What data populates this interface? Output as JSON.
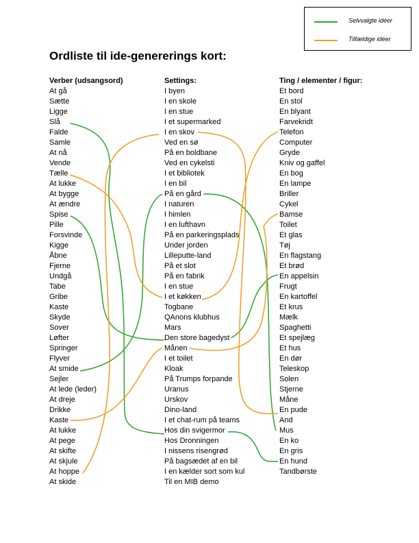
{
  "legend": {
    "items": [
      {
        "label": "Selvvalgte idéer",
        "color": "#2aa52a"
      },
      {
        "label": "Tilfældige idéer",
        "color": "#f39a1e"
      }
    ]
  },
  "title": "Ordliste til ide-genererings kort:",
  "columns": [
    {
      "header": "Verber (udsangsord)",
      "items": [
        "At gå",
        "Sætte",
        "Ligge",
        "Slå",
        "Falde",
        "Samle",
        "At nå",
        "Vende",
        "Tælle",
        "At lukke",
        "At bygge",
        "At ændre",
        "Spise",
        "Pille",
        "Forsvinde",
        "Kigge",
        "Åbne",
        "Fjerne",
        "Undgå",
        "Tabe",
        "Gribe",
        "Kaste",
        "Skyde",
        "Sover",
        "Løfter",
        "Springer",
        "Flyver",
        "At smide",
        "Sejler",
        "At lede (leder)",
        "At dreje",
        "Drikke",
        "Kaste",
        "At lukke",
        "At pege",
        "At skifte",
        "At skjule",
        "At hoppe",
        "At skide"
      ]
    },
    {
      "header": "Settings:",
      "items": [
        "I byen",
        "I en skole",
        "I en stue",
        "I et supermarked",
        "I en skov",
        "Ved en sø",
        "På en boldbane",
        "Ved en cykelsti",
        "I et bibliotek",
        "I en bil",
        "På en gård",
        "I naturen",
        "I himlen",
        "I en lufthavn",
        "På en parkeringsplads",
        "Under jorden",
        "Lilleputte-land",
        "På et slot",
        "På en fabrik",
        "I en stue",
        "I et køkken",
        "Togbane",
        "QAnons klubhus",
        "Mars",
        "Den store bagedyst",
        "Månen",
        "I et toilet",
        "Kloak",
        "På Trumps forpande",
        "Uranus",
        "Urskov",
        "Dino-land",
        "I et chat-rum på teams",
        "Hos din svigermor",
        "Hos Dronningen",
        "I nissens risengrød",
        "På bagsædet af en bil",
        "I en kælder sort som kul",
        "Til en MIB demo"
      ]
    },
    {
      "header": "Ting / elementer / figur:",
      "items": [
        "Et bord",
        "En stol",
        "En blyant",
        "Farvekridt",
        "Telefon",
        "Computer",
        "Gryde",
        "Kniv og gaffel",
        "En bog",
        "En lampe",
        "Briller",
        "Cykel",
        "Bamse",
        "Toilet",
        "Et glas",
        "Tøj",
        "En flagstang",
        "Et brød",
        "En appelsin",
        "Frugt",
        "En kartoffel",
        "Et krus",
        "Mælk",
        "Spaghetti",
        "Et spejlæg",
        "Et hus",
        "En dør",
        "Teleskop",
        "Solen",
        "Stjerne",
        "Måne",
        "En pude",
        "And",
        "Mus",
        "En ko",
        "En gris",
        "En hund",
        "Tandbørste"
      ]
    }
  ]
}
